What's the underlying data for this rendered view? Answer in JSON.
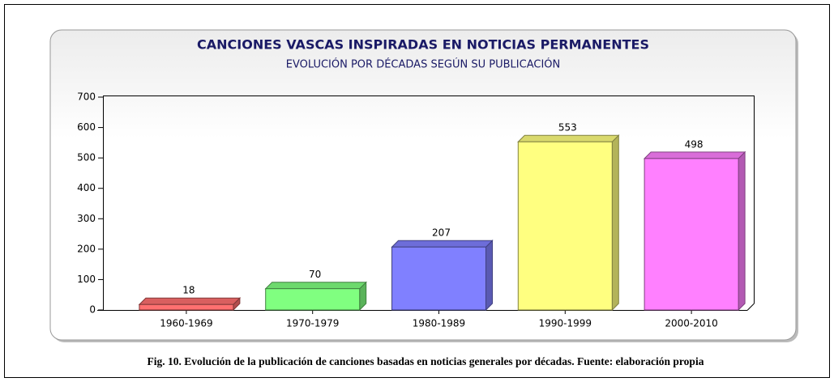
{
  "chart_data": {
    "type": "bar3d",
    "title": "CANCIONES VASCAS INSPIRADAS EN NOTICIAS PERMANENTES",
    "subtitle": "EVOLUCIÓN POR DÉCADAS SEGÚN SU PUBLICACIÓN",
    "categories": [
      "1960-1969",
      "1970-1979",
      "1980-1989",
      "1990-1999",
      "2000-2010"
    ],
    "values": [
      18,
      70,
      207,
      553,
      498
    ],
    "colors": [
      "#ff7070",
      "#80ff80",
      "#8080ff",
      "#ffff80",
      "#ff80ff"
    ],
    "ylim": [
      0,
      700
    ],
    "yticks": [
      0,
      100,
      200,
      300,
      400,
      500,
      600,
      700
    ]
  },
  "caption": "Fig. 10. Evolución de la publicación de canciones basadas en noticias generales por décadas. Fuente: elaboración propia"
}
